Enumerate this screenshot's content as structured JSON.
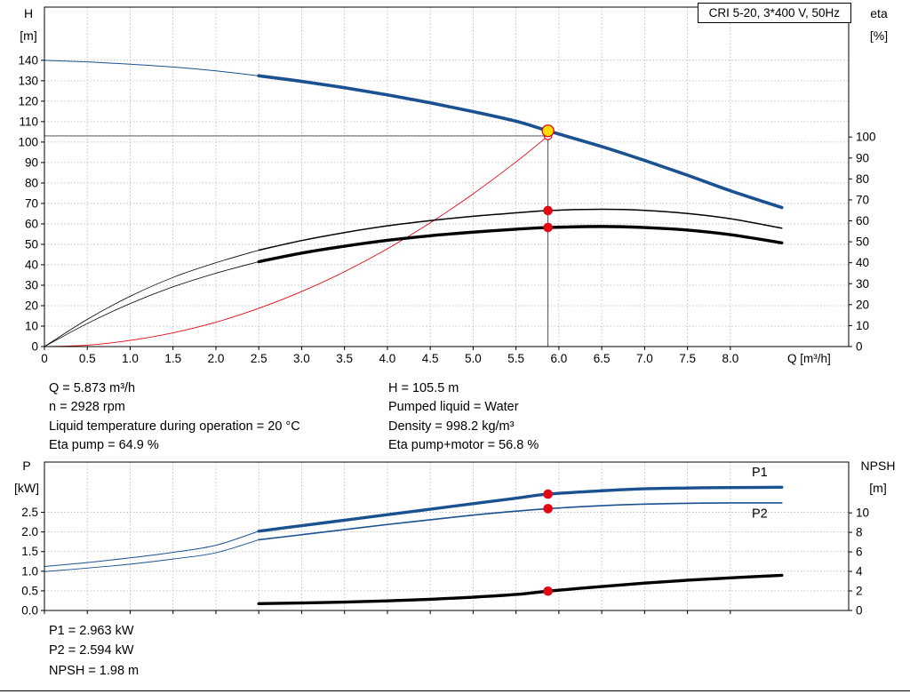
{
  "title_box": "CRI 5-20, 3*400 V, 50Hz",
  "colors": {
    "blue": "#1a5191",
    "black": "#000000",
    "red": "#e30613",
    "yellow": "#ffdd00",
    "grid": "#b4b4b4",
    "guide": "#3c3c3c"
  },
  "info_top": {
    "left": [
      "Q = 5.873 m³/h",
      "n = 2928 rpm",
      "Liquid temperature during operation = 20 °C",
      "Eta pump = 64.9 %"
    ],
    "right": [
      "H = 105.5 m",
      "Pumped liquid = Water",
      "Density = 998.2 kg/m³",
      "Eta pump+motor = 56.8 %"
    ]
  },
  "info_bottom": [
    "P1 = 2.963 kW",
    "P2 = 2.594 kW",
    "NPSH = 1.98 m"
  ],
  "chart_data": [
    {
      "type": "line",
      "name": "qh-efficiency-chart",
      "title": "CRI 5-20, 3*400 V, 50Hz",
      "xlabel": "Q [m³/h]",
      "x_axis": {
        "min": 0,
        "max": 9.38,
        "labels_visible": true,
        "ticks": [
          "0",
          "0.5",
          "1.0",
          "1.5",
          "2.0",
          "2.5",
          "3.0",
          "3.5",
          "4.0",
          "4.5",
          "5.0",
          "5.5",
          "6.0",
          "6.5",
          "7.0",
          "7.5",
          "8.0"
        ]
      },
      "y_left": {
        "name": "H",
        "unit": "[m]",
        "min": 0,
        "max": 166,
        "ticks": [
          "0",
          "10",
          "20",
          "30",
          "40",
          "50",
          "60",
          "70",
          "80",
          "90",
          "100",
          "110",
          "120",
          "130",
          "140"
        ]
      },
      "y_right": {
        "name": "eta",
        "unit": "[%]",
        "min": 0,
        "max": 162,
        "ticks": [
          "0",
          "10",
          "20",
          "30",
          "40",
          "50",
          "60",
          "70",
          "80",
          "90",
          "100"
        ]
      },
      "series": [
        {
          "name": "head-curve-lead",
          "axis": "left",
          "color": "#1a5191",
          "width": 1,
          "points": [
            [
              0,
              140
            ],
            [
              0.5,
              139.2
            ],
            [
              1,
              138.1
            ],
            [
              1.5,
              136.7
            ],
            [
              2,
              134.8
            ],
            [
              2.5,
              132.4
            ]
          ]
        },
        {
          "name": "head-curve",
          "axis": "left",
          "color": "#1a5191",
          "width": 3.6,
          "points": [
            [
              2.5,
              132.4
            ],
            [
              3,
              129.7
            ],
            [
              3.5,
              126.6
            ],
            [
              4,
              123.1
            ],
            [
              4.5,
              119.2
            ],
            [
              5,
              114.9
            ],
            [
              5.5,
              110.2
            ],
            [
              5.873,
              105.5
            ],
            [
              6.5,
              97.8
            ],
            [
              7,
              91
            ],
            [
              7.5,
              83.8
            ],
            [
              8,
              76.2
            ],
            [
              8.6,
              68
            ]
          ]
        },
        {
          "name": "system-curve",
          "axis": "left",
          "color": "#e30613",
          "width": 0.9,
          "points": [
            [
              0,
              0
            ],
            [
              0.5,
              0.7
            ],
            [
              1,
              3
            ],
            [
              1.5,
              6.7
            ],
            [
              2,
              11.9
            ],
            [
              2.5,
              18.7
            ],
            [
              3,
              26.9
            ],
            [
              3.5,
              36.6
            ],
            [
              4,
              47.8
            ],
            [
              4.5,
              60.5
            ],
            [
              5,
              74.7
            ],
            [
              5.5,
              90.3
            ],
            [
              5.873,
              103
            ]
          ]
        },
        {
          "name": "eta-pump-curve-lead",
          "axis": "right",
          "color": "#000000",
          "width": 0.8,
          "points": [
            [
              0,
              0
            ],
            [
              0.5,
              13
            ],
            [
              1,
              24
            ],
            [
              1.5,
              33
            ],
            [
              2,
              40
            ],
            [
              2.5,
              46
            ]
          ]
        },
        {
          "name": "eta-pump-curve",
          "axis": "right",
          "color": "#000000",
          "width": 1.5,
          "points": [
            [
              2.5,
              46
            ],
            [
              3,
              50.6
            ],
            [
              3.5,
              54.4
            ],
            [
              4,
              57.6
            ],
            [
              4.5,
              60.1
            ],
            [
              5,
              62.2
            ],
            [
              5.5,
              63.8
            ],
            [
              5.873,
              64.9
            ],
            [
              6.5,
              65.5
            ],
            [
              7,
              65
            ],
            [
              7.5,
              63.5
            ],
            [
              8,
              61
            ],
            [
              8.6,
              56.5
            ]
          ]
        },
        {
          "name": "eta-pump-motor-curve-lead",
          "axis": "right",
          "color": "#000000",
          "width": 0.8,
          "points": [
            [
              0,
              0
            ],
            [
              0.5,
              11
            ],
            [
              1,
              20.5
            ],
            [
              1.5,
              28.5
            ],
            [
              2,
              35
            ],
            [
              2.5,
              40.5
            ]
          ]
        },
        {
          "name": "eta-pump-motor-curve",
          "axis": "right",
          "color": "#000000",
          "width": 3.4,
          "points": [
            [
              2.5,
              40.5
            ],
            [
              3,
              44.6
            ],
            [
              3.5,
              47.9
            ],
            [
              4,
              50.7
            ],
            [
              4.5,
              52.9
            ],
            [
              5,
              54.6
            ],
            [
              5.5,
              56
            ],
            [
              5.873,
              56.8
            ],
            [
              6.5,
              57.3
            ],
            [
              7,
              56.8
            ],
            [
              7.5,
              55.6
            ],
            [
              8,
              53.4
            ],
            [
              8.6,
              49.5
            ]
          ]
        }
      ],
      "guides": [
        {
          "dir": "h",
          "axis": "left",
          "y": 103,
          "x1": 0,
          "x2": 5.873
        },
        {
          "dir": "v",
          "axis": "left",
          "x": 5.873,
          "y1": 0,
          "y2": 105.5
        }
      ],
      "markers": [
        {
          "name": "system-intersection-marker",
          "axis": "left",
          "x": 5.873,
          "y": 103,
          "r": 4.2,
          "fill": "#ffffff",
          "stroke": "#e30613",
          "sw": 1.2
        },
        {
          "name": "duty-point-marker",
          "axis": "left",
          "x": 5.873,
          "y": 105.5,
          "r": 6.5,
          "fill": "#ffdd00",
          "stroke": "#e30613",
          "sw": 1.3
        },
        {
          "name": "eta-pump-duty-marker",
          "axis": "right",
          "x": 5.873,
          "y": 64.9,
          "r": 4.8,
          "fill": "#e30613",
          "stroke": "#e30613",
          "sw": 1
        },
        {
          "name": "eta-pump-motor-duty-marker",
          "axis": "right",
          "x": 5.873,
          "y": 56.8,
          "r": 4.8,
          "fill": "#e30613",
          "stroke": "#e30613",
          "sw": 1
        }
      ],
      "series_labels": []
    },
    {
      "type": "line",
      "name": "power-npsh-chart",
      "xlabel": "",
      "x_axis": {
        "min": 0,
        "max": 9.38,
        "labels_visible": false,
        "ticks": [
          "0",
          "0.5",
          "1.0",
          "1.5",
          "2.0",
          "2.5",
          "3.0",
          "3.5",
          "4.0",
          "4.5",
          "5.0",
          "5.5",
          "6.0",
          "6.5",
          "7.0",
          "7.5",
          "8.0"
        ]
      },
      "y_left": {
        "name": "P",
        "unit": "[kW]",
        "min": 0,
        "max": 3.78,
        "ticks": [
          "0.0",
          "0.5",
          "1.0",
          "1.5",
          "2.0",
          "2.5"
        ]
      },
      "y_right": {
        "name": "NPSH",
        "unit": "[m]",
        "min": 0,
        "max": 15.2,
        "ticks": [
          "0",
          "2",
          "4",
          "6",
          "8",
          "10"
        ]
      },
      "series": [
        {
          "name": "p1-curve-lead",
          "axis": "left",
          "color": "#1a5191",
          "width": 1,
          "points": [
            [
              0,
              1.12
            ],
            [
              0.5,
              1.22
            ],
            [
              1,
              1.34
            ],
            [
              1.5,
              1.48
            ],
            [
              2,
              1.66
            ],
            [
              2.5,
              2.02
            ]
          ]
        },
        {
          "name": "p1-curve",
          "axis": "left",
          "color": "#1a5191",
          "width": 3.4,
          "points": [
            [
              2.5,
              2.02
            ],
            [
              3,
              2.16
            ],
            [
              3.5,
              2.3
            ],
            [
              4,
              2.44
            ],
            [
              4.5,
              2.58
            ],
            [
              5,
              2.72
            ],
            [
              5.5,
              2.86
            ],
            [
              5.873,
              2.963
            ],
            [
              6.5,
              3.05
            ],
            [
              7,
              3.1
            ],
            [
              7.5,
              3.12
            ],
            [
              8,
              3.13
            ],
            [
              8.6,
              3.14
            ]
          ]
        },
        {
          "name": "p2-curve-lead",
          "axis": "left",
          "color": "#1a5191",
          "width": 0.9,
          "points": [
            [
              0,
              0.99
            ],
            [
              0.5,
              1.08
            ],
            [
              1,
              1.18
            ],
            [
              1.5,
              1.31
            ],
            [
              2,
              1.47
            ],
            [
              2.5,
              1.8
            ]
          ]
        },
        {
          "name": "p2-curve",
          "axis": "left",
          "color": "#1a5191",
          "width": 1.6,
          "points": [
            [
              2.5,
              1.8
            ],
            [
              3,
              1.93
            ],
            [
              3.5,
              2.06
            ],
            [
              4,
              2.19
            ],
            [
              4.5,
              2.31
            ],
            [
              5,
              2.43
            ],
            [
              5.5,
              2.53
            ],
            [
              5.873,
              2.594
            ],
            [
              6.5,
              2.67
            ],
            [
              7,
              2.71
            ],
            [
              7.5,
              2.73
            ],
            [
              8,
              2.74
            ],
            [
              8.6,
              2.74
            ]
          ]
        },
        {
          "name": "npsh-curve",
          "axis": "right",
          "color": "#000000",
          "width": 3.4,
          "points": [
            [
              2.5,
              0.7
            ],
            [
              3,
              0.77
            ],
            [
              3.5,
              0.86
            ],
            [
              4,
              0.98
            ],
            [
              4.5,
              1.14
            ],
            [
              5,
              1.36
            ],
            [
              5.5,
              1.64
            ],
            [
              5.873,
              1.98
            ],
            [
              6.5,
              2.45
            ],
            [
              7,
              2.8
            ],
            [
              7.5,
              3.1
            ],
            [
              8,
              3.34
            ],
            [
              8.6,
              3.6
            ]
          ]
        }
      ],
      "guides": [],
      "markers": [
        {
          "name": "p1-duty-marker",
          "axis": "left",
          "x": 5.873,
          "y": 2.963,
          "r": 4.8,
          "fill": "#e30613",
          "stroke": "#e30613",
          "sw": 1
        },
        {
          "name": "p2-duty-marker",
          "axis": "left",
          "x": 5.873,
          "y": 2.594,
          "r": 4.8,
          "fill": "#e30613",
          "stroke": "#e30613",
          "sw": 1
        },
        {
          "name": "npsh-duty-marker",
          "axis": "right",
          "x": 5.873,
          "y": 1.98,
          "r": 4.8,
          "fill": "#e30613",
          "stroke": "#e30613",
          "sw": 1
        }
      ],
      "series_labels": [
        {
          "name": "p1-curve-label",
          "text": "P1",
          "axis": "left",
          "x": 8.25,
          "y": 3.42,
          "color": "#1a5191"
        },
        {
          "name": "p2-curve-label",
          "text": "P2",
          "axis": "left",
          "x": 8.25,
          "y": 2.37,
          "color": "#1a5191"
        }
      ]
    }
  ]
}
